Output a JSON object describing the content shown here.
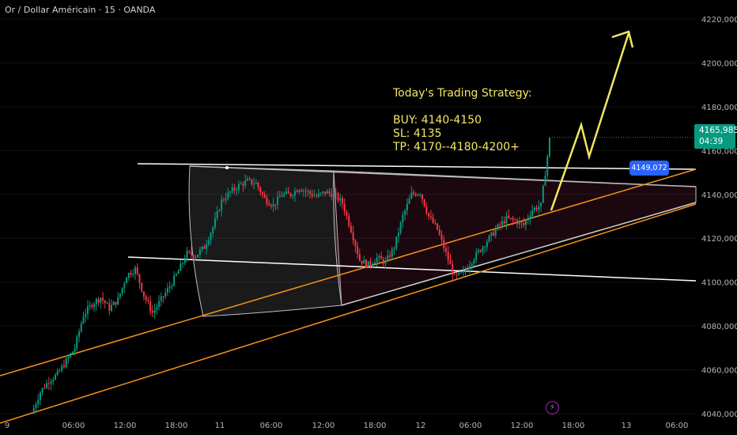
{
  "symbol": {
    "title": "Or / Dollar Américain · 15 · OANDA"
  },
  "strategy": {
    "heading": "Today's Trading Strategy:",
    "buy": "BUY: 4140-4150",
    "sl": "SL: 4135",
    "tp": "TP: 4170--4180-4200+"
  },
  "price_scale": {
    "current_price": "4165,985",
    "countdown": "04:39",
    "level_label": "4149,072",
    "ticks": [
      "4220,000",
      "4200,000",
      "4180,000",
      "4160,000",
      "4140,000",
      "4120,000",
      "4100,000",
      "4080,000",
      "4060,000",
      "4040,000"
    ]
  },
  "time_axis": {
    "ticks": [
      "9",
      "06:00",
      "12:00",
      "18:00",
      "11",
      "06:00",
      "12:00",
      "18:00",
      "12",
      "06:00",
      "12:00",
      "18:00",
      "13",
      "06:00"
    ]
  },
  "colors": {
    "background": "#000000",
    "up_candle": "#089981",
    "down_candle": "#f23645",
    "trendline": "#ffffff",
    "channel_line": "#f7931a",
    "projection_arrow": "#f5e663",
    "level_badge": "#2962ff"
  },
  "icons": {
    "alert": "lightning-icon"
  },
  "chart_data": {
    "type": "candlestick",
    "ylim": [
      4030,
      4228
    ],
    "current_price": 4165.985,
    "marked_level": 4149.072,
    "strategy_levels": {
      "buy_low": 4140,
      "buy_high": 4150,
      "stop_loss": 4135,
      "take_profit": [
        4170,
        4180,
        4200
      ]
    },
    "series": [
      {
        "close_path": [
          [
            0,
            4040
          ],
          [
            4,
            4050
          ],
          [
            8,
            4055
          ],
          [
            12,
            4058
          ],
          [
            16,
            4064
          ],
          [
            20,
            4070
          ],
          [
            24,
            4085
          ],
          [
            28,
            4090
          ],
          [
            32,
            4093
          ],
          [
            36,
            4088
          ],
          [
            40,
            4092
          ],
          [
            44,
            4103
          ],
          [
            48,
            4106
          ],
          [
            52,
            4094
          ],
          [
            56,
            4086
          ],
          [
            60,
            4092
          ],
          [
            64,
            4098
          ],
          [
            68,
            4105
          ],
          [
            72,
            4113
          ],
          [
            76,
            4112
          ],
          [
            80,
            4116
          ],
          [
            84,
            4125
          ],
          [
            88,
            4137
          ],
          [
            92,
            4141
          ],
          [
            96,
            4144
          ],
          [
            100,
            4146
          ],
          [
            104,
            4145
          ],
          [
            108,
            4138
          ],
          [
            112,
            4135
          ],
          [
            116,
            4140
          ],
          [
            120,
            4140
          ],
          [
            124,
            4143
          ],
          [
            128,
            4141
          ],
          [
            132,
            4139
          ],
          [
            136,
            4141
          ],
          [
            140,
            4140
          ],
          [
            144,
            4136
          ],
          [
            148,
            4124
          ],
          [
            152,
            4110
          ],
          [
            156,
            4108
          ],
          [
            160,
            4111
          ],
          [
            164,
            4109
          ],
          [
            168,
            4116
          ],
          [
            172,
            4130
          ],
          [
            176,
            4140
          ],
          [
            180,
            4141
          ],
          [
            184,
            4130
          ],
          [
            188,
            4124
          ],
          [
            192,
            4113
          ],
          [
            196,
            4102
          ],
          [
            200,
            4104
          ],
          [
            204,
            4110
          ],
          [
            208,
            4115
          ],
          [
            212,
            4120
          ],
          [
            216,
            4125
          ],
          [
            220,
            4129
          ],
          [
            224,
            4128
          ],
          [
            228,
            4126
          ],
          [
            232,
            4133
          ],
          [
            236,
            4135
          ],
          [
            238,
            4150
          ],
          [
            240,
            4165
          ]
        ]
      }
    ]
  }
}
